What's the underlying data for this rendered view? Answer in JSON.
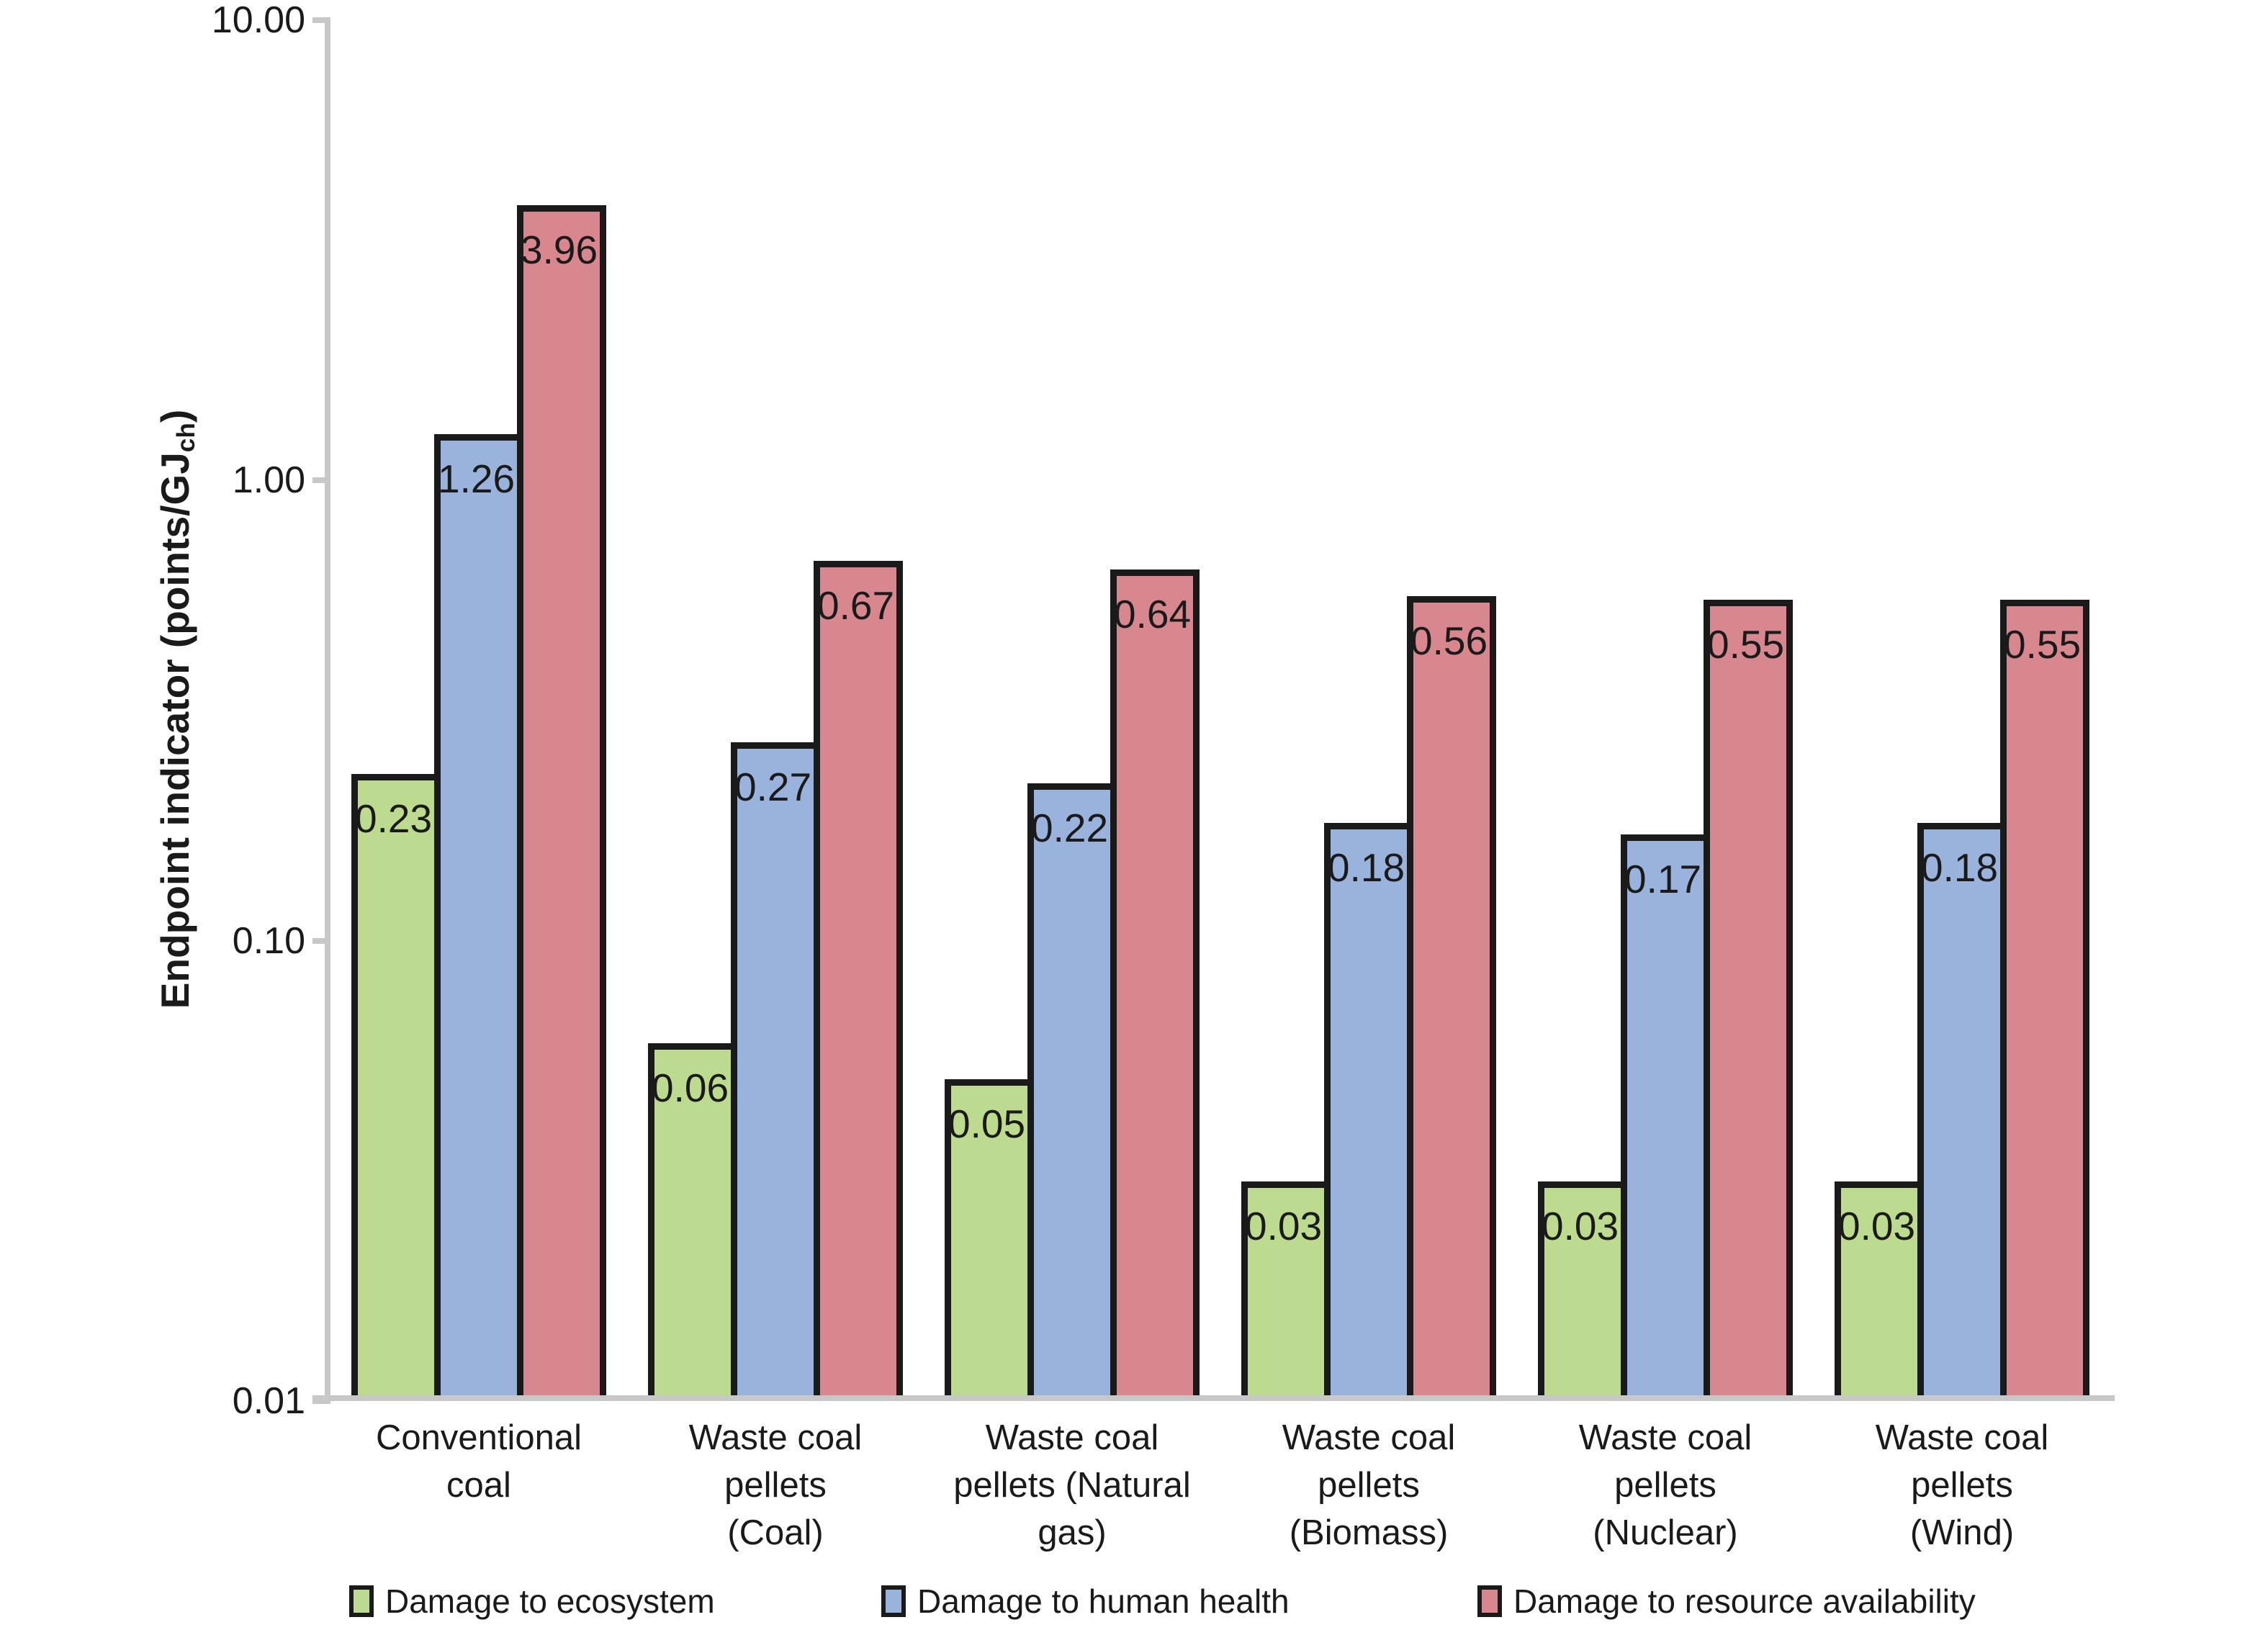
{
  "chart_data": {
    "type": "bar",
    "title": "",
    "y_scale": "log",
    "ylim": [
      0.01,
      10
    ],
    "grid": false,
    "legend_position": "bottom",
    "ylabel": {
      "main": "Endpoint indicator (points/GJ",
      "sub": "ch",
      "close": ")"
    },
    "y_ticks": [
      {
        "value": 10,
        "label": "10.00"
      },
      {
        "value": 1,
        "label": "1.00"
      },
      {
        "value": 0.1,
        "label": "0.10"
      },
      {
        "value": 0.01,
        "label": "0.01"
      }
    ],
    "categories": [
      {
        "name": "Conventional coal",
        "lines": [
          "Conventional",
          "coal"
        ]
      },
      {
        "name": "Waste coal pellets (Coal)",
        "lines": [
          "Waste coal",
          "pellets",
          "(Coal)"
        ]
      },
      {
        "name": "Waste coal pellets (Natural gas)",
        "lines": [
          "Waste coal",
          "pellets (Natural",
          "gas)"
        ]
      },
      {
        "name": "Waste coal pellets (Biomass)",
        "lines": [
          "Waste coal",
          "pellets",
          "(Biomass)"
        ]
      },
      {
        "name": "Waste coal pellets (Nuclear)",
        "lines": [
          "Waste coal",
          "pellets",
          "(Nuclear)"
        ]
      },
      {
        "name": "Waste coal pellets (Wind)",
        "lines": [
          "Waste coal",
          "pellets",
          "(Wind)"
        ]
      }
    ],
    "series": [
      {
        "name": "Damage to ecosystem",
        "color": "#bcdb8e",
        "values": [
          0.23,
          0.06,
          0.05,
          0.03,
          0.03,
          0.03
        ]
      },
      {
        "name": "Damage to human health",
        "color": "#99b3dd",
        "values": [
          1.26,
          0.27,
          0.22,
          0.18,
          0.17,
          0.18
        ]
      },
      {
        "name": "Damage to resource availability",
        "color": "#d8878f",
        "values": [
          3.96,
          0.67,
          0.64,
          0.56,
          0.55,
          0.55
        ]
      }
    ],
    "bar_border_color": "#1a1a1a",
    "axis_color": "#c8c8c8",
    "text_color": "#1a1a1a"
  }
}
